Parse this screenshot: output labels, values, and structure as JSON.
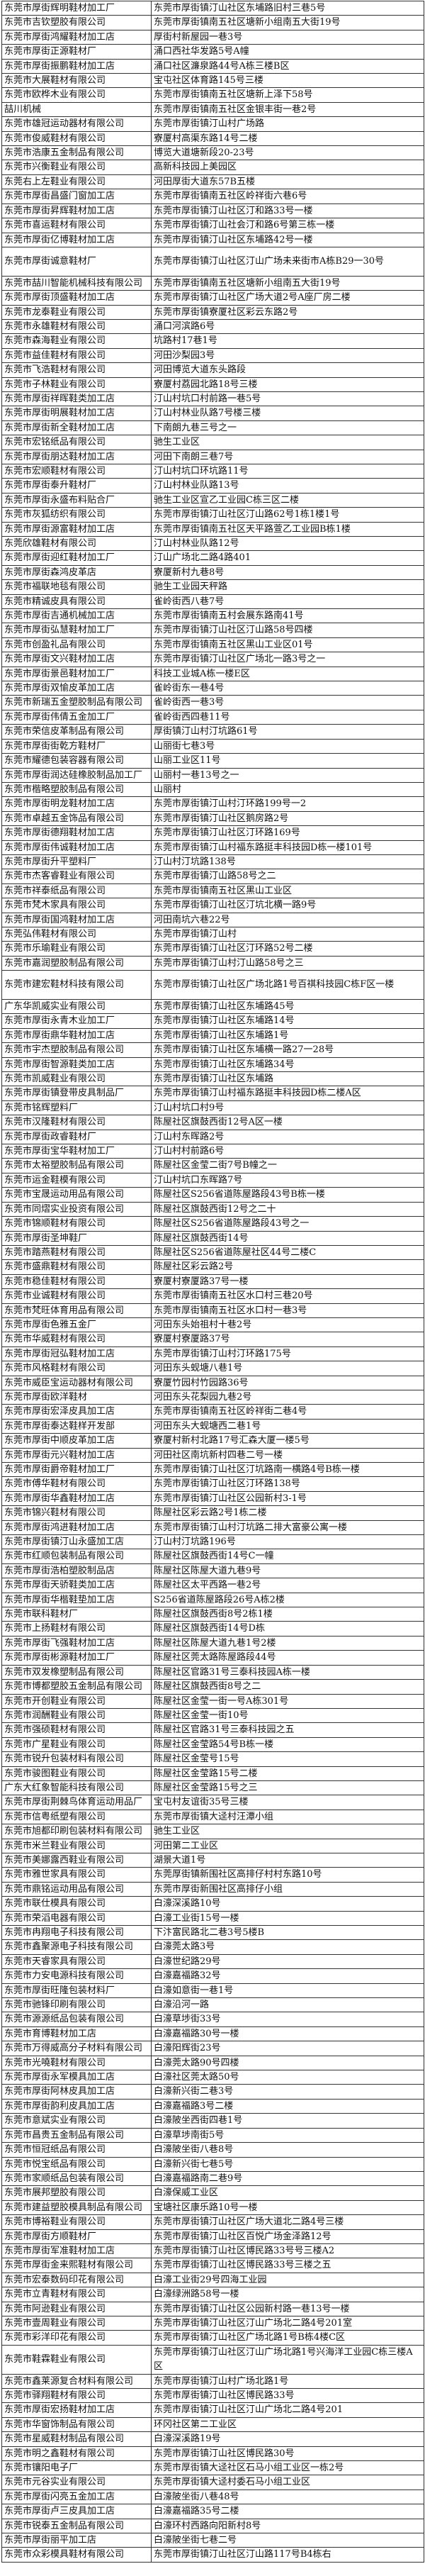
{
  "rows": [
    [
      "东莞市厚街辉明鞋材加工厂",
      "东莞市厚街镇汀山社区东埔路旧村三巷5号"
    ],
    [
      "东莞市吉钦塑胶有限公司",
      "东莞市厚街镇南五社区塘新小组南五大街19号"
    ],
    [
      "东莞市厚街鸿耀鞋材加工店",
      "厚街村新屋园一巷3号"
    ],
    [
      "东莞市厚街正源鞋材厂",
      "涌口西社华发路5号A幢"
    ],
    [
      "东莞市厚街振鹏鞋材加工店",
      "涌口社区濂泉路44号A栋三楼B区"
    ],
    [
      "东莞市大展鞋材有限公司",
      "宝屯社区体育路145号三楼"
    ],
    [
      "东莞市欧桦木业有限公司",
      "东莞市厚街镇南五社区塘新上泽下58号"
    ],
    [
      "喆川机械",
      "东莞市厚街镇南五社区金银丰街一巷2号"
    ],
    [
      "东莞市雄冠运动器材有限公司",
      "东莞市厚街镇汀山村广场路"
    ],
    [
      "东莞市俊威鞋材有限公司",
      "寮厦村高渠东路14号二楼"
    ],
    [
      "东莞市浩康五金制品有限公司",
      "博览大道塘新段20-23号"
    ],
    [
      "东莞市兴衡鞋业有限公司",
      "高新科技园上美园区"
    ],
    [
      "东莞右上左鞋业有限公司",
      "河田厚街大道东57B五楼"
    ],
    [
      "东莞市厚街昌盛门窗加工店",
      "东莞市厚街镇南五社区岭祥街六巷6号"
    ],
    [
      "东莞市厚街昇辉鞋材加工店",
      "东莞市厚街镇汀山社区汀和路33号一楼"
    ],
    [
      "东莞市喜运鞋材有限公司",
      "东莞市厚街镇汀山社会汀和路6号第三栋一楼"
    ],
    [
      "东莞市厚街亿博鞋材加工店",
      "东莞市厚街镇汀山社区东埔路42号一楼"
    ],
    [
      "东莞市厚街诚意鞋材厂",
      "东莞市厚街镇汀山社区汀山广场未来街市A栋B29一30号"
    ],
    [
      "东莞市喆川智能机械科技有限公司",
      "东莞市厚街镇南五社区塘新小组南五大街19号"
    ],
    [
      "东莞市厚街顶盛鞋材加工店",
      "东莞市厚街镇汀山社区广场大道2号A座厂房二楼"
    ],
    [
      "东莞市龙泰鞋业有限公司",
      "东莞市厚街镇寮厦社区彩云东路2号"
    ],
    [
      "东莞市永雄鞋材有限公司",
      "涌口河滨路6号"
    ],
    [
      "东莞市森海鞋业有限公司",
      "坑路村17巷1号"
    ],
    [
      "东莞市益佳鞋材有限公司",
      "河田沙梨园3号"
    ],
    [
      "东莞市飞浩鞋材有限公司",
      "河田博览大道东头路段"
    ],
    [
      "东莞市子林鞋业有限公司",
      "寮厦村荔园北路18号三楼"
    ],
    [
      "东莞市厚街祥晖鞋类加工店",
      "汀山村坑口村前路一巷5号"
    ],
    [
      "东莞市厚街明展鞋材加工店",
      "汀山村林业队路7号楼三楼"
    ],
    [
      "东莞市厚街新全鞋材加工店",
      "下南朗九巷三号之一"
    ],
    [
      "东莞市宏铭纸品有限公司",
      "驰生工业区"
    ],
    [
      "东莞市厚街朋达鞋材加工店",
      "河田下南朗三巷7号"
    ],
    [
      "东莞市宏顺鞋材有限公司",
      "汀山村坑口环坑路11号"
    ],
    [
      "东莞市厚街泰升鞋材厂",
      "汀山村林业队路13号"
    ],
    [
      "东莞市厚街永盛布料贴合厂",
      "驰生工业区宣乙工业园C栋三区二楼"
    ],
    [
      "东莞市灰狐纺织有限公司",
      "东莞市厚街镇汀山社区汀山路62号1栋1楼1号"
    ],
    [
      "东莞市厚街源富鞋材加工店",
      "东莞市厚街镇南五社区天平路萱乙工业园B栋1楼"
    ],
    [
      "东莞欣雄鞋材有限公司",
      "汀山村林业队路12号"
    ],
    [
      "东莞市厚街迎红鞋材加工厂",
      "汀山广场北二路4路401"
    ],
    [
      "东莞市厚街森鸿皮革店",
      "寮厦新村九巷8号"
    ],
    [
      "东莞市福联地毯有限公司",
      "驰生工业园天秤路"
    ],
    [
      "东莞市精诚皮具有限公司",
      "雀岭街西八巷7号"
    ],
    [
      "东莞市厚街吉通机械加工店",
      "东莞市厚街镇南五村会展东路南41号"
    ],
    [
      "东莞市厚街弘慧鞋材加工厂",
      "东莞市厚街镇汀山社区汀山路58号四楼"
    ],
    [
      "东莞市创盈礼品有限公司",
      "东莞市厚街镇南五社区黑山工业区01号"
    ],
    [
      "东莞市厚街文兴鞋材加工店",
      "东莞市厚街镇汀山社区广场北一路3号之一"
    ],
    [
      "东莞市厚街景邑鞋材加工厂",
      "科技工业城A栋一楼E区"
    ],
    [
      "东莞市厚街双愉皮革加工店",
      "雀岭街东一巷4号"
    ],
    [
      "东莞市新瑞五金塑胶制品有限公司",
      "雀岭街西一巷3号"
    ],
    [
      "东莞市厚街伟倩五金加工厂",
      "雀岭街西四巷11号"
    ],
    [
      "东莞市荣信皮革制品有限公司",
      "厚街镇汀山村汀坑路61号"
    ],
    [
      "东莞市厚街街乾方鞋材厂",
      "山丽街七巷3号"
    ],
    [
      "东莞市耀德包装容器有限公司",
      "山丽工业区11号"
    ],
    [
      "东莞市厚街润达硅橡胶制品加工厂",
      "山丽村一巷13号之一"
    ],
    [
      "东莞市楷略塑胶制品有限公司",
      "山丽村"
    ],
    [
      "东莞市厚街明龙鞋材加工店",
      "东莞市厚街镇汀山村汀环路199号一2"
    ],
    [
      "东莞市卓越五金饰品有限公司",
      "东莞市厚街镇汀山社区鹅房路2号"
    ],
    [
      "东莞市厚街德翔鞋材加工店",
      "东莞市厚街镇汀山社区汀环路169号"
    ],
    [
      "东莞市厚街伟诚鞋材加工店",
      "东莞市厚街镇汀山村福东路挺丰科技园D栋一楼101号"
    ],
    [
      "东莞市厚街升平塑料厂",
      "汀山村汀坑路138号"
    ],
    [
      "东莞市杰客睿鞋业有限公司",
      "东莞市厚街镇汀山路58号之二"
    ],
    [
      "东莞市祥泰纸品有限公司",
      "东莞市厚街镇南五社区黑山工业区"
    ],
    [
      "东莞市梵木家具有限公司",
      "东莞市厚街镇汀山社区汀坑北横一路9号"
    ],
    [
      "东莞市厚街国鸿鞋材加工店",
      "河田南坑六巷22号"
    ],
    [
      "东莞弘伟鞋材有限公司",
      "东莞市厚街镇汀山村"
    ],
    [
      "东莞市乐瑜鞋业有限公司",
      "东莞市厚街镇汀山社区汀环路52号二楼"
    ],
    [
      "东莞市嘉润塑胶制品有限公司",
      "东莞市厚街镇汀山村汀山路58号之三"
    ],
    [
      "东莞市建宏鞋材科技有限公司",
      "东莞市厚街镇汀山社区广场北路1号百祺科技园C栋F区一楼"
    ],
    [
      "广东华凯威实业有限公司",
      "东莞市厚街镇汀山社区东埔路45号"
    ],
    [
      "东莞市厚街永青木业加工厂",
      "东莞市厚街镇汀山社区东埔路14号"
    ],
    [
      "东莞市厚街鼎华鞋材加工店",
      "东莞市厚街镇汀山社区东埔路1号"
    ],
    [
      "东莞市宇杰塑胶制品有限公司",
      "东莞市厚街镇汀山社区东埔横一路27一28号"
    ],
    [
      "东莞市厚街智源鞋类加工店",
      "东莞市厚街镇汀山社区东埔路34号"
    ],
    [
      "东莞市凯威鞋业有限公司",
      "东莞市厚街镇汀山社区东埔路"
    ],
    [
      "东莞市厚街镇登带皮具制品厂",
      "东莞市厚街镇汀山村福东路挺丰科技园D栋二楼A区"
    ],
    [
      "东莞市铭辉塑料厂",
      "汀山村坑口村9号"
    ],
    [
      "东莞市汉隆鞋材有限公司",
      "陈屋社区旗鼓西街12号A区一楼"
    ],
    [
      "东莞市厚街政睿鞋材厂",
      "汀山村东晖路2号"
    ],
    [
      "东莞市厚街宝华鞋材加工厂",
      "汀山村村前路6号"
    ],
    [
      "东莞市太裕塑胶制品有限公司",
      "陈屋社区金莹二街7号B幢之一"
    ],
    [
      "东莞市运金鞋模有限公司",
      "汀山村坑口东晖路7号"
    ],
    [
      "东莞市宝晟运动用品有限公司",
      "陈屋社区S256省道陈屋路段43号B栋一楼"
    ],
    [
      "东莞市同熠实业投资有限公司",
      "陈屋社区旗鼓西街12号之二十"
    ],
    [
      "东莞市锦顺鞋材有限公司",
      "陈屋社区S256省道陈屋路段43号之一"
    ],
    [
      "东莞市厚街圣坤鞋厂",
      "陈屋社区旗鼓西街14号"
    ],
    [
      "东莞市踏燕鞋材有限公司",
      "陈屋社区S256省道陈屋社区44号二楼C"
    ],
    [
      "东莞市盛鼎鞋材有限公司",
      "陈屋社区彩云路2号"
    ],
    [
      "东莞市稳佳鞋材有限公司",
      "寮厦村寮厦路37号一楼"
    ],
    [
      "东莞市业诚鞋材有限公司",
      "东莞市厚街镇南五社区水口村三巷20号"
    ],
    [
      "东莞市梵旺体育用品有限公司",
      "东莞市厚街镇南五社区水口村一巷3号"
    ],
    [
      "东莞市厚街色雅五金厂",
      "河田东头始祖村十巷2号"
    ],
    [
      "东莞市华威鞋材有限公司",
      "寮厦村寮厦路37号"
    ],
    [
      "东莞市厚街冠弘鞋材加工店",
      "东莞市厚街镇汀山村汀环路175号"
    ],
    [
      "东莞市风格鞋材有限公司",
      "河田东头蚬塘八巷1号"
    ],
    [
      "东莞市威臣宝运动器材有限公司",
      "寮厦竹园村竹园路36号"
    ],
    [
      "东莞市厚街欧洋鞋材",
      "河田东头花梨园九巷2号"
    ],
    [
      "东莞市厚街宏泽皮具加工店",
      "东莞市厚街镇南五社区岭祥街二巷4号"
    ],
    [
      "东莞市厚街泰达鞋样开发部",
      "河田东头大蚬塘西二巷1号"
    ],
    [
      "东莞市厚街中顺皮革加工店",
      "寮厦村新村北路17号汇森大厦一楼5号"
    ],
    [
      "东莞市厚街元兴鞋材加工店",
      "河田社区南坑新村四巷二号一楼"
    ],
    [
      "东莞市厚街爵帝鞋材加工厂",
      "东莞市厚街镇汀山社区汀坑路南一横路4号B栋一楼"
    ],
    [
      "东莞市傅华鞋材有限公司",
      "东莞市厚街镇汀山社区汀环路138号"
    ],
    [
      "东莞市厚街华鑫鞋材加工店",
      "东莞市厚街镇汀山社区公园新村3-1号"
    ],
    [
      "东莞市锦兴鞋材有限公司",
      "陈屋社区彩云路2号1栋二楼"
    ],
    [
      "东莞市厚街鸿进鞋材加工店",
      "东莞市厚街镇汀山村汀坑路二排大富豪公寓一楼"
    ],
    [
      "东莞市厚街镇汀山永盛加工店",
      "汀山村汀坑路196号"
    ],
    [
      "东莞市红顺包装制品有限公司",
      "陈屋社区旗鼓西街14号C一幢"
    ],
    [
      "东莞市厚街浩柏塑胶制品店",
      "陈屋社区陈屋大道九巷9号"
    ],
    [
      "东莞市厚街天骄鞋类加工店",
      "陈屋社区太平西路一巷2号"
    ],
    [
      "东莞市厚街华楷鞋垫加工店",
      "S256省道陈屋路段26号A栋2楼"
    ],
    [
      "东莞市联科鞋材厂",
      "陈屋社区旗鼓西街8号2栋1楼"
    ],
    [
      "东莞市上扬鞋材有限公司",
      "陈屋社区旗鼓西街14号D栋"
    ],
    [
      "东莞市厚街飞强鞋材加工店",
      "陈屋社区陈屋大道九巷1号2楼"
    ],
    [
      "东莞市厚街彬源鞋材加工厂",
      "陈屋社区莞太路陈屋路段44号"
    ],
    [
      "东莞市双发橡塑制品有限公司",
      "陈屋社区官路31号三泰科技园A栋一楼"
    ],
    [
      "东莞市博都塑胶五金制品有限公司",
      "陈屋社区旗鼓西街8号之二"
    ],
    [
      "东莞市开创鞋业有限公司",
      "陈屋社区金莹一街一号A栋301号"
    ],
    [
      "东莞市润酬鞋业有限公司",
      "陈屋社区金莹一街10号"
    ],
    [
      "东莞市强硕鞋材有限公司",
      "陈屋社区官路31号三泰科技园之五"
    ],
    [
      "东莞市广星鞋业有限公司",
      "陈屋社区金莹路54号B栋一楼"
    ],
    [
      "东莞市锐升包装材料有限公司",
      "陈屋社区金莹号15号"
    ],
    [
      "东莞市骏图鞋业有限公司",
      "陈屋社区金莹路15号二楼"
    ],
    [
      "广东大红象智能科技有限公司",
      "陈屋社区金莹路15号之三"
    ],
    [
      "东莞市厚街荆棘鸟体育运动用品厂",
      "宝屯村友谊街35号三楼"
    ],
    [
      "东莞市信粤纸塑有限公司",
      "东莞市厚街镇大迳村汪潭小组"
    ],
    [
      "东莞市旭都印刷包装材料有限公司",
      "驰生工业区"
    ],
    [
      "东莞市米兰鞋业有限公司",
      "河田第二工业区"
    ],
    [
      "东莞市美娜露西鞋业有限公司",
      "湖景大道1号"
    ],
    [
      "东莞市雅世家具有限公司",
      "东莞厚街镇新围社区高排仔村村东路10号"
    ],
    [
      "东莞市鼎铭运动用品有限公司",
      "东莞市厚街新围社区高排仔小组"
    ],
    [
      "东莞市联仕模具有限公司",
      "白濠深溪路10号"
    ],
    [
      "东莞市荣滔电器有限公司",
      "白濠工业街15号一楼"
    ],
    [
      "东莞市冉翔电子科技有限公司",
      "下汴富民路北二巷3号5楼B"
    ],
    [
      "东莞市鑫聚源电子科技有限公司",
      "白濠莞太路3号"
    ],
    [
      "东莞市天睿家具有限公司",
      "白濠世纪路29号"
    ],
    [
      "东莞市力安电源科技有限公司",
      "白濠嘉福路32号"
    ],
    [
      "东莞市厚街旺隆包装材料厂",
      "白濠如意街一巷1号"
    ],
    [
      "东莞市驰锋印刷有限公司",
      "白濠沿河一路"
    ],
    [
      "东莞市源源纸品包装有限公司",
      "白濠草埗街33号"
    ],
    [
      "东莞市育博鞋材加工店",
      "白濠嘉福路30号一楼"
    ],
    [
      "东莞市万得威高分子材料有限公司",
      "白濠阳辉街23号"
    ],
    [
      "东莞市光嘵鞋材有限公司",
      "白濠莞太路90号四楼"
    ],
    [
      "东莞市厚街永军模具加工店",
      "白濠社区莞太路50号"
    ],
    [
      "东莞市厚街阿林皮具加工店",
      "白濠新兴街二巷3号"
    ],
    [
      "东莞市厚街韵利皮具加工店",
      "白濠嘉福路3号二楼"
    ],
    [
      "东莞市意斌实业有限公司",
      "白濠陂坐西街四巷1号"
    ],
    [
      "东莞市昌贵五金制品有限公司",
      "白濠草埗南街5号"
    ],
    [
      "东莞市恒冠纸品有限公司",
      "白濠陂坐街八巷8号"
    ],
    [
      "东莞市悦宝纸品有限公司",
      "白濠新兴街七巷5号"
    ],
    [
      "东莞市家顺纸品包装有限公司",
      "白濠嘉福路南二巷9号"
    ],
    [
      "东莞市展邦塑胶有限公司",
      "白濠保威工业区"
    ],
    [
      "东莞市建益塑胶模具制品有限公司",
      "宝塘社区康乐路10号一楼"
    ],
    [
      "东莞市博裕鞋业有限公司",
      "东莞市厚街镇汀山社区广场大道北二路4号三楼"
    ],
    [
      "东莞市厚街方顺鞋材厂",
      "东莞市厚街镇汀山社区百悦广场金泽路12号"
    ],
    [
      "东莞市厚街军准鞋材加工店",
      "东莞市厚街镇汀山社区博民路33号号三楼A2"
    ],
    [
      "东莞市厚街金来熙鞋材有限公司",
      "东莞市厚街镇汀山社区博民路33号三楼之五"
    ],
    [
      "东莞市宏泰数码印花有限公司",
      "白濠工业街29号四海工业园"
    ],
    [
      "东莞市立青鞋材有限公司",
      "白濠绿洲路58号一楼"
    ],
    [
      "东莞市阿逊鞋业有限公司",
      "东莞市厚街镇汀山社区公园新村路一巷13号一楼"
    ],
    [
      "东莞市壹周鞋业有限公司",
      "东莞市厚街镇汀山社区汀山广场北二路4号201室"
    ],
    [
      "东莞市彩洋印花有限公司",
      "东莞市厚街镇汀山社区广场北路1号B栋4楼C区"
    ],
    [
      "东莞市鞋霖鞋业有限公司",
      "东莞市厚街镇汀山社区汀山广场北路1号兴海洋工业园C栋三楼A区"
    ],
    [
      "东莞市鑫莱源复合材料有限公司",
      "东莞市厚街镇汀山村广场北路1号"
    ],
    [
      "东莞市驿翔鞋材有限公司",
      "东莞市厚街镇汀山社区博民路33号"
    ],
    [
      "东莞市厚街宏扬鞋材加工店",
      "东莞市厚街镇汀山社区汀山广场北二路4号201"
    ],
    [
      "东莞市华窗饰制品有限公司",
      "环冈社区第二工业区"
    ],
    [
      "东莞市星威鞋材制品有限公司",
      "白濠深溪路19号"
    ],
    [
      "东莞市明之鑫鞋材有限公司",
      "东莞市厚街镇汀山社区博民路30号"
    ],
    [
      "东莞市镶阳电子厂",
      "东莞市厚街镇大迳社区石马小组工业区一栋2号"
    ],
    [
      "东莞市元谷实业有限公司",
      "东莞市厚街镇大迳村委石马小组工业区"
    ],
    [
      "东莞市厚街闪亮五金加工店",
      "白濠陂坐街八巷48号"
    ],
    [
      "东莞市厚街卢三皮具加工店",
      "白濠嘉福路35号二楼"
    ],
    [
      "东莞市锐泰五金制品有限公司",
      "白濠环村西路向阳新村8号"
    ],
    [
      "东莞市厚街丽平加工店",
      "白濠陂坐街七巷二号"
    ],
    [
      "东莞市众彩模具鞋材有限公司",
      "东莞市厚街镇汀山社区汀山路117号B4栋右"
    ]
  ]
}
